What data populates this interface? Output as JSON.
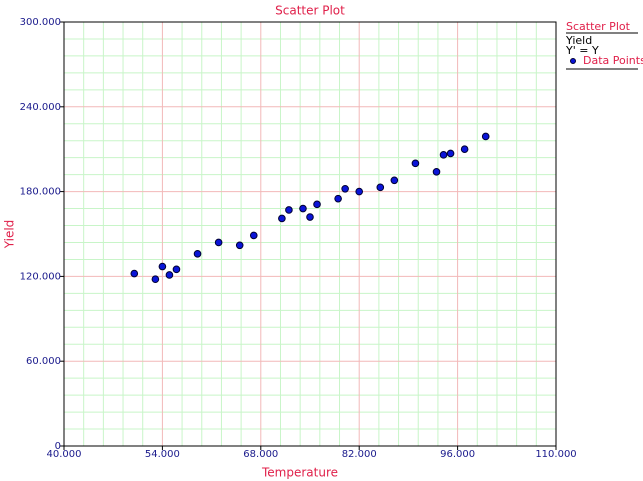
{
  "chart_data": {
    "type": "scatter",
    "title": "Scatter Plot",
    "x_label": "Temperature",
    "y_label": "Yield",
    "legend_equation": "Y' = Y",
    "series": [
      {
        "name": "Data Points",
        "color": "#0a14d8",
        "x": [
          50,
          53,
          54,
          55,
          56,
          59,
          62,
          65,
          67,
          71,
          72,
          74,
          75,
          76,
          79,
          80,
          82,
          85,
          87,
          90,
          93,
          94,
          95,
          97,
          100
        ],
        "values": [
          122,
          118,
          127,
          121,
          125,
          136,
          144,
          142,
          149,
          161,
          167,
          168,
          162,
          171,
          175,
          182,
          180,
          183,
          188,
          200,
          194,
          206,
          207,
          210,
          219
        ]
      }
    ],
    "xlim": [
      40,
      110
    ],
    "xticks": [
      {
        "value": 40,
        "label": "40.000"
      },
      {
        "value": 54,
        "label": "54.000"
      },
      {
        "value": 68,
        "label": "68.000"
      },
      {
        "value": 82,
        "label": "82.000"
      },
      {
        "value": 96,
        "label": "96.000"
      },
      {
        "value": 110,
        "label": "110.000"
      }
    ],
    "ylim": [
      0,
      300
    ],
    "yticks": [
      {
        "value": 0,
        "label": "0"
      },
      {
        "value": 60,
        "label": "60.000"
      },
      {
        "value": 120,
        "label": "120.000"
      },
      {
        "value": 180,
        "label": "180.000"
      },
      {
        "value": 240,
        "label": "240.000"
      },
      {
        "value": 300,
        "label": "300.000"
      }
    ],
    "grid": true,
    "legend": "right"
  }
}
